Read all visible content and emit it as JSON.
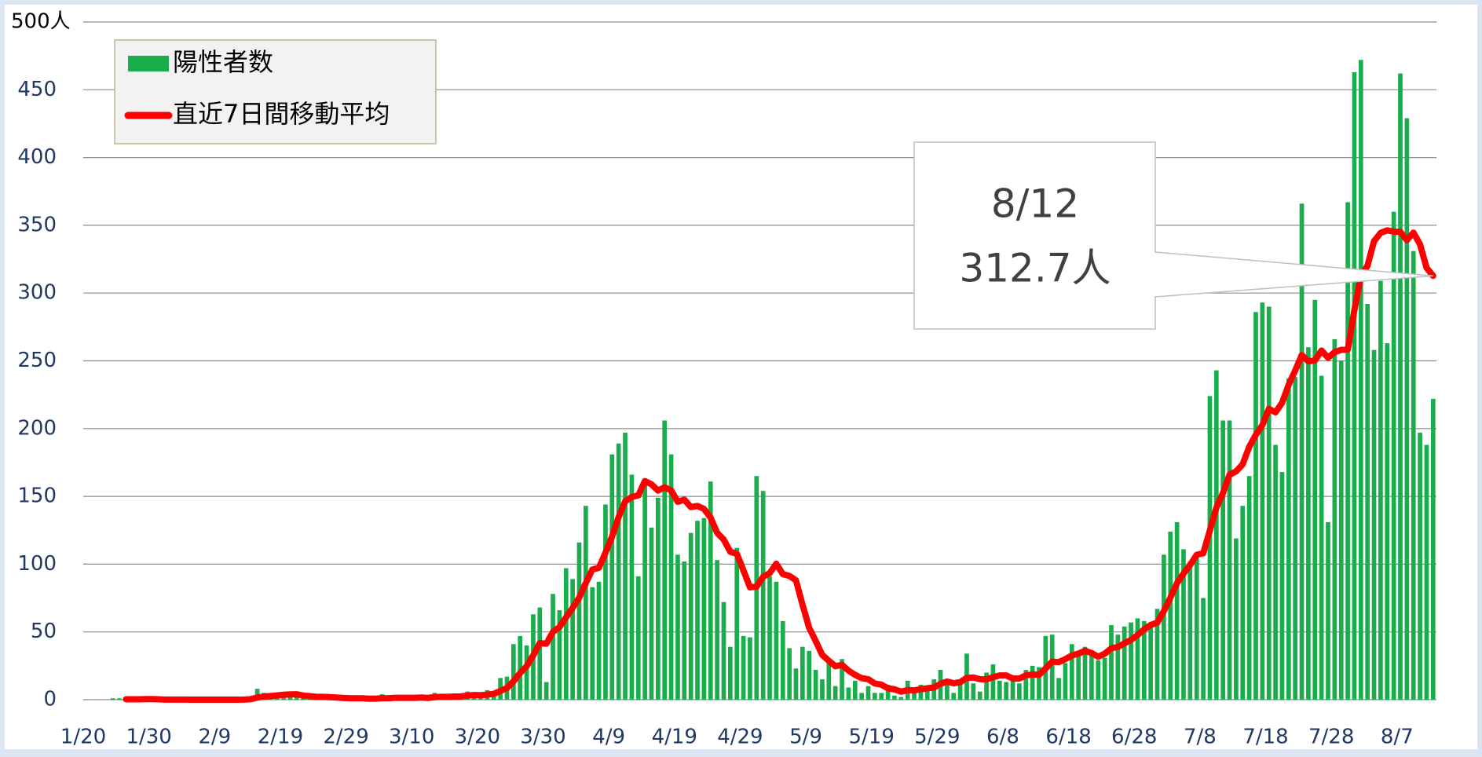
{
  "chart_data": {
    "type": "bar_line",
    "categories": [
      "1/20",
      null,
      null,
      null,
      null,
      null,
      null,
      null,
      null,
      null,
      "1/30",
      null,
      null,
      null,
      null,
      null,
      null,
      null,
      null,
      null,
      "2/9",
      null,
      null,
      null,
      null,
      null,
      null,
      null,
      null,
      null,
      "2/19",
      null,
      null,
      null,
      null,
      null,
      null,
      null,
      null,
      null,
      "2/29",
      null,
      null,
      null,
      null,
      null,
      null,
      null,
      null,
      null,
      "3/10",
      null,
      null,
      null,
      null,
      null,
      null,
      null,
      null,
      null,
      "3/20",
      null,
      null,
      null,
      null,
      null,
      null,
      null,
      null,
      null,
      "3/30",
      null,
      null,
      null,
      null,
      null,
      null,
      null,
      null,
      null,
      "4/9",
      null,
      null,
      null,
      null,
      null,
      null,
      null,
      null,
      null,
      "4/19",
      null,
      null,
      null,
      null,
      null,
      null,
      null,
      null,
      null,
      "4/29",
      null,
      null,
      null,
      null,
      null,
      null,
      null,
      null,
      null,
      "5/9",
      null,
      null,
      null,
      null,
      null,
      null,
      null,
      null,
      null,
      "5/19",
      null,
      null,
      null,
      null,
      null,
      null,
      null,
      null,
      null,
      "5/29",
      null,
      null,
      null,
      null,
      null,
      null,
      null,
      null,
      null,
      "6/8",
      null,
      null,
      null,
      null,
      null,
      null,
      null,
      null,
      null,
      "6/18",
      null,
      null,
      null,
      null,
      null,
      null,
      null,
      null,
      null,
      "6/28",
      null,
      null,
      null,
      null,
      null,
      null,
      null,
      null,
      null,
      "7/8",
      null,
      null,
      null,
      null,
      null,
      null,
      null,
      null,
      null,
      "7/18",
      null,
      null,
      null,
      null,
      null,
      null,
      null,
      null,
      null,
      "7/28",
      null,
      null,
      null,
      null,
      null,
      null,
      null,
      null,
      null,
      "8/7",
      null,
      null,
      null,
      null,
      null
    ],
    "series": [
      {
        "name": "陽性者数",
        "kind": "bar",
        "color": "#1aad4b",
        "values": [
          0,
          0,
          0,
          0,
          1,
          1,
          0,
          0,
          0,
          1,
          0,
          0,
          0,
          0,
          0,
          0,
          0,
          0,
          0,
          0,
          0,
          0,
          0,
          0,
          1,
          2,
          8,
          5,
          3,
          3,
          3,
          3,
          3,
          1,
          2,
          0,
          3,
          1,
          1,
          1,
          0,
          1,
          0,
          1,
          1,
          4,
          1,
          2,
          1,
          0,
          1,
          2,
          2,
          5,
          4,
          1,
          1,
          2,
          6,
          5,
          4,
          7,
          5,
          16,
          17,
          41,
          47,
          40,
          63,
          68,
          13,
          78,
          66,
          97,
          89,
          116,
          143,
          83,
          87,
          144,
          181,
          189,
          197,
          166,
          91,
          161,
          127,
          149,
          206,
          181,
          107,
          102,
          123,
          132,
          134,
          161,
          103,
          72,
          39,
          112,
          47,
          46,
          165,
          154,
          91,
          87,
          58,
          38,
          23,
          39,
          36,
          22,
          15,
          28,
          10,
          30,
          9,
          14,
          5,
          10,
          5,
          5,
          11,
          3,
          2,
          14,
          8,
          11,
          10,
          15,
          22,
          14,
          5,
          13,
          34,
          12,
          6,
          20,
          26,
          14,
          13,
          18,
          12,
          22,
          25,
          24,
          47,
          48,
          16,
          27,
          41,
          35,
          39,
          35,
          29,
          31,
          55,
          48,
          54,
          57,
          60,
          58,
          54,
          67,
          107,
          124,
          131,
          111,
          102,
          106,
          75,
          224,
          243,
          206,
          206,
          119,
          143,
          165,
          286,
          293,
          290,
          188,
          168,
          237,
          238,
          366,
          260,
          295,
          239,
          131,
          266,
          250,
          367,
          463,
          472,
          292,
          258,
          309,
          263,
          360,
          462,
          429,
          331,
          197,
          188,
          222
        ]
      },
      {
        "name": "直近7日間移動平均",
        "kind": "line",
        "color": "#ff0000",
        "values": [
          null,
          null,
          null,
          null,
          null,
          null,
          0.3,
          0.3,
          0.3,
          0.4,
          0.4,
          0.3,
          0.1,
          0.1,
          0.1,
          0.1,
          0,
          0,
          0,
          0,
          0,
          0,
          0,
          0,
          0.1,
          0.4,
          1.6,
          2.3,
          2.7,
          3.1,
          3.6,
          3.9,
          4.0,
          3.0,
          2.6,
          2.1,
          2.1,
          1.9,
          1.6,
          1.3,
          1.1,
          1.0,
          1.0,
          0.7,
          0.7,
          1.1,
          1.1,
          1.4,
          1.4,
          1.4,
          1.4,
          1.6,
          1.3,
          1.9,
          2.1,
          2.1,
          2.3,
          2.4,
          3.0,
          3.4,
          3.3,
          3.7,
          4.3,
          6.4,
          8.6,
          13.6,
          19.6,
          24.7,
          32.7,
          41.7,
          41.3,
          50.0,
          53.6,
          60.7,
          67.7,
          75.3,
          86.0,
          96.0,
          97.3,
          108.4,
          120.4,
          134.7,
          146.3,
          149.6,
          150.7,
          161.3,
          158.9,
          154.3,
          156.7,
          154.4,
          146.0,
          147.6,
          142.1,
          142.9,
          140.7,
          134.3,
          123.1,
          118.1,
          109.1,
          107.6,
          95.4,
          82.9,
          83.4,
          90.7,
          93.4,
          100.3,
          92.6,
          91.3,
          88.0,
          70.0,
          53.1,
          43.3,
          33.0,
          28.7,
          24.7,
          25.7,
          21.4,
          18.3,
          15.9,
          15.1,
          11.9,
          11.1,
          8.4,
          7.6,
          5.9,
          7.1,
          6.9,
          7.7,
          8.4,
          9.0,
          11.7,
          13.4,
          12.1,
          12.9,
          16.1,
          16.4,
          15.1,
          14.9,
          16.6,
          17.9,
          17.9,
          15.6,
          15.6,
          17.9,
          18.6,
          18.3,
          23.0,
          28.0,
          27.7,
          29.9,
          32.6,
          34.0,
          36.1,
          34.4,
          31.7,
          33.9,
          37.9,
          38.9,
          41.6,
          44.1,
          47.7,
          51.9,
          55.1,
          56.9,
          65.3,
          75.3,
          85.9,
          93.1,
          99.4,
          106.9,
          108.0,
          124.7,
          141.7,
          152.4,
          166.0,
          168.4,
          173.7,
          186.6,
          195.4,
          202.6,
          214.6,
          212.0,
          219.0,
          232.4,
          242.9,
          254.3,
          249.6,
          250.3,
          257.6,
          252.3,
          256.4,
          258.1,
          258.3,
          287.3,
          312.6,
          320.1,
          338.3,
          344.4,
          346.3,
          345.3,
          345.1,
          339.0,
          344.6,
          335.9,
          318.6,
          312.7
        ]
      }
    ],
    "ylim": [
      0,
      500
    ],
    "yticks": [
      0,
      50,
      100,
      150,
      200,
      250,
      300,
      350,
      400,
      450,
      {
        "value": 500,
        "label": "500人"
      }
    ],
    "grid": true,
    "legend": "top-left",
    "annotation": {
      "date": "8/12",
      "text": "312.7人"
    }
  }
}
